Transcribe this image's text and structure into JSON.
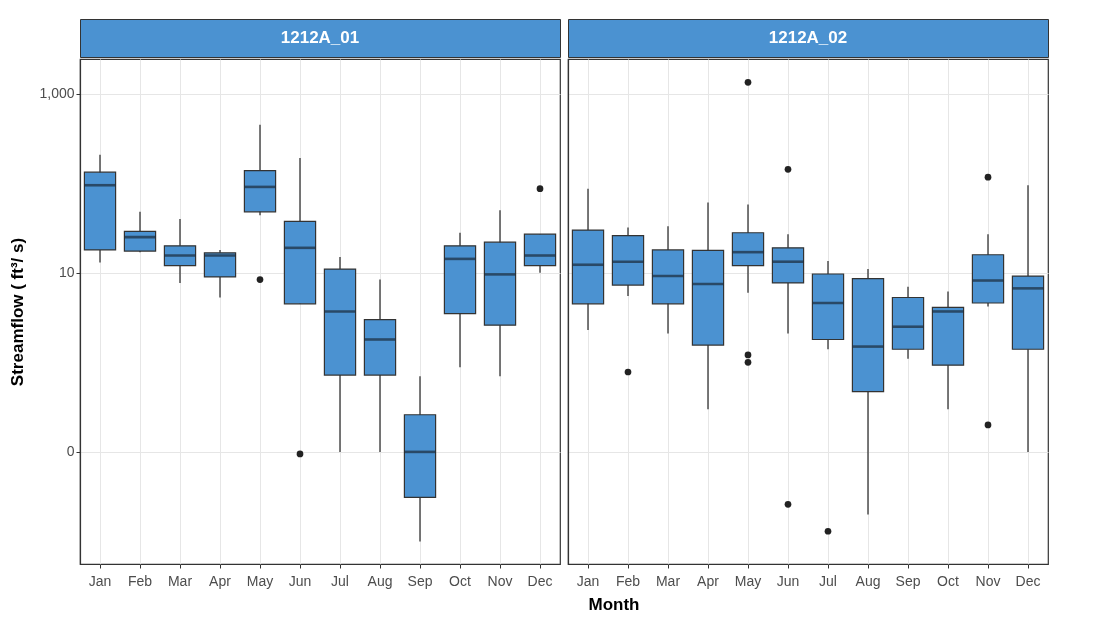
{
  "chart_data": [
    {
      "type": "box",
      "title": "1212A_01",
      "xlabel": "Month",
      "ylabel": "Streamflow ( ft³/ s)",
      "categories": [
        "Jan",
        "Feb",
        "Mar",
        "Apr",
        "May",
        "Jun",
        "Jul",
        "Aug",
        "Sep",
        "Oct",
        "Nov",
        "Dec"
      ],
      "log": true,
      "grid": true,
      "ylim": [
        0.0056,
        2440
      ],
      "yticks": [
        {
          "value": 0.1,
          "label": "0"
        },
        10,
        {
          "value": 1000,
          "label": "1,000"
        }
      ],
      "series": [
        {
          "color": "#4b92d1",
          "boxes": [
            {
              "low": 13,
              "q1": 18,
              "median": 95,
              "q3": 133,
              "high": 208
            },
            {
              "low": 17,
              "q1": 17.5,
              "median": 25,
              "q3": 29,
              "high": 48
            },
            {
              "low": 7.7,
              "q1": 12,
              "median": 15.6,
              "q3": 20,
              "high": 40
            },
            {
              "low": 5.3,
              "q1": 9,
              "median": 15.6,
              "q3": 16.7,
              "high": 18
            },
            {
              "low": 44,
              "q1": 48,
              "median": 91,
              "q3": 138,
              "high": 450,
              "outliers": [
                8.4
              ]
            },
            {
              "low": 4.5,
              "q1": 4.5,
              "median": 19,
              "q3": 37.5,
              "high": 191,
              "outliers": [
                0.095
              ]
            },
            {
              "low": 0.1,
              "q1": 0.72,
              "median": 3.7,
              "q3": 11,
              "high": 15
            },
            {
              "low": 0.1,
              "q1": 0.72,
              "median": 1.8,
              "q3": 3,
              "high": 8.4
            },
            {
              "low": 0.01,
              "q1": 0.031,
              "median": 0.1,
              "q3": 0.26,
              "high": 0.7
            },
            {
              "low": 0.88,
              "q1": 3.5,
              "median": 14.3,
              "q3": 20,
              "high": 28
            },
            {
              "low": 0.7,
              "q1": 2.6,
              "median": 9.6,
              "q3": 22,
              "high": 50
            },
            {
              "low": 10,
              "q1": 12,
              "median": 15.6,
              "q3": 27,
              "high": 27,
              "outliers": [
                87
              ]
            }
          ]
        }
      ]
    },
    {
      "type": "box",
      "title": "1212A_02",
      "categories": [
        "Jan",
        "Feb",
        "Mar",
        "Apr",
        "May",
        "Jun",
        "Jul",
        "Aug",
        "Sep",
        "Oct",
        "Nov",
        "Dec"
      ],
      "log": true,
      "grid": true,
      "tick_labels": "x",
      "ylim": [
        0.0056,
        2440
      ],
      "yticks": [
        0.1,
        10,
        1000
      ],
      "series": [
        {
          "color": "#4b92d1",
          "boxes": [
            {
              "low": 2.3,
              "q1": 4.5,
              "median": 12.3,
              "q3": 30,
              "high": 87
            },
            {
              "low": 5.5,
              "q1": 7.3,
              "median": 13.3,
              "q3": 26,
              "high": 32,
              "outliers": [
                0.78
              ]
            },
            {
              "low": 2.1,
              "q1": 4.5,
              "median": 9.2,
              "q3": 18,
              "high": 33
            },
            {
              "low": 0.3,
              "q1": 1.56,
              "median": 7.5,
              "q3": 17.8,
              "high": 61
            },
            {
              "low": 6,
              "q1": 12,
              "median": 17,
              "q3": 28,
              "high": 58,
              "outliers": [
                1340,
                1.21,
                1.0
              ]
            },
            {
              "low": 2.1,
              "q1": 7.7,
              "median": 13.3,
              "q3": 19,
              "high": 27,
              "outliers": [
                143,
                0.026
              ]
            },
            {
              "low": 1.4,
              "q1": 1.8,
              "median": 4.6,
              "q3": 9.7,
              "high": 13.5,
              "outliers": [
                0.013
              ]
            },
            {
              "low": 0.02,
              "q1": 0.47,
              "median": 1.5,
              "q3": 8.6,
              "high": 11
            },
            {
              "low": 1.1,
              "q1": 1.4,
              "median": 2.5,
              "q3": 5.3,
              "high": 7
            },
            {
              "low": 0.3,
              "q1": 0.93,
              "median": 3.7,
              "q3": 4.1,
              "high": 6.2
            },
            {
              "low": 4.2,
              "q1": 4.6,
              "median": 8.2,
              "q3": 15.9,
              "high": 27,
              "outliers": [
                117,
                0.2
              ]
            },
            {
              "low": 0.1,
              "q1": 1.4,
              "median": 6.7,
              "q3": 9.2,
              "high": 95
            }
          ]
        }
      ]
    }
  ]
}
